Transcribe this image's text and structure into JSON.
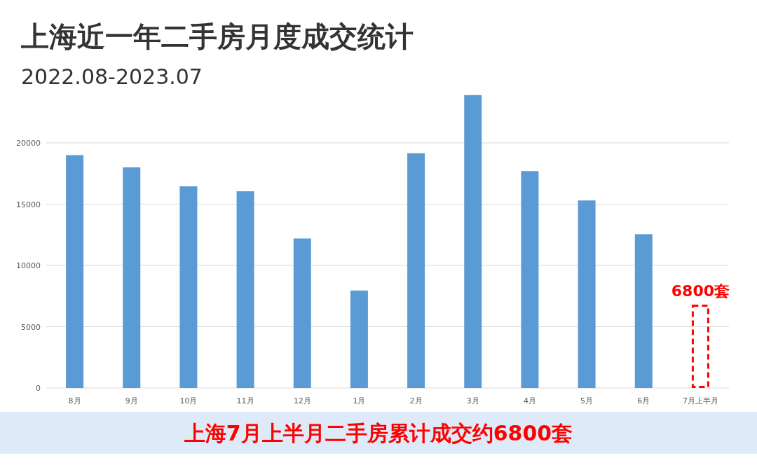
{
  "chart_data": {
    "type": "bar",
    "title": "上海近一年二手房月度成交统计",
    "subtitle": "2022.08-2023.07",
    "categories": [
      "8月",
      "9月",
      "10月",
      "11月",
      "12月",
      "1月",
      "2月",
      "3月",
      "4月",
      "5月",
      "6月",
      "7月上半月"
    ],
    "series": [
      {
        "color": "#5b9bd5",
        "values": [
          19000,
          18000,
          16450,
          16050,
          12200,
          7950,
          19150,
          23900,
          17700,
          15300,
          12550,
          null
        ]
      },
      {
        "color": "#ff0000",
        "line_style": "dashed",
        "values": [
          null,
          null,
          null,
          null,
          null,
          null,
          null,
          null,
          null,
          null,
          null,
          6800
        ],
        "value_labels": [
          null,
          null,
          null,
          null,
          null,
          null,
          null,
          null,
          null,
          null,
          null,
          "6800套"
        ]
      }
    ],
    "ylim": [
      0,
      24000
    ],
    "yticks": [
      0,
      5000,
      10000,
      15000,
      20000
    ],
    "grid": "y",
    "annotations": [
      "上海7月上半月二手房累计成交约6800套"
    ]
  }
}
